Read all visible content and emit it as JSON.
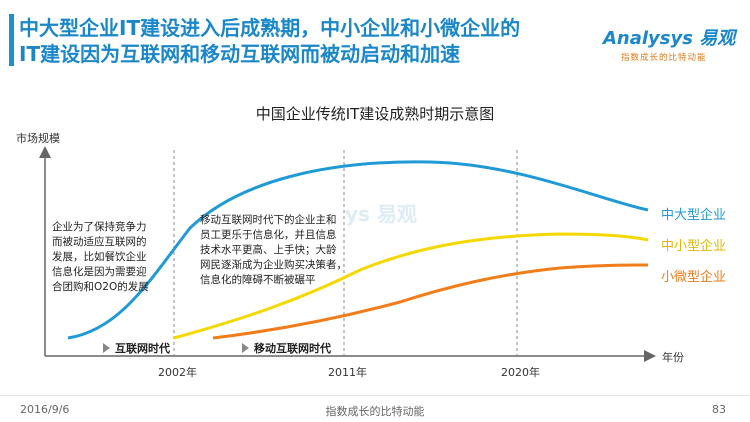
{
  "header": {
    "title_line1": "中大型企业IT建设进入后成熟期，中小企业和小微企业的",
    "title_line2": "IT建设因为互联网和移动互联网而被动启动和加速"
  },
  "logo": {
    "brand": "Analysys 易观",
    "tagline": "指数成长的比特动能"
  },
  "chart_data": {
    "type": "line",
    "title": "中国企业传统IT建设成熟时期示意图",
    "ylabel": "市场规模",
    "xlabel": "年份",
    "x_ticks": [
      "2002年",
      "2011年",
      "2020年"
    ],
    "series": [
      {
        "name": "中大型企业",
        "color": "#1f9ad6"
      },
      {
        "name": "中小型企业",
        "color": "#f5d800"
      },
      {
        "name": "小微型企业",
        "color": "#f07c1a"
      }
    ],
    "grid": false
  },
  "notes": {
    "left": [
      "企业为了保持竞争力",
      "而被动适应互联网的",
      "发展，比如餐饮企业",
      "信息化是因为需要迎",
      "合团购和O2O的发展"
    ],
    "middle": [
      "移动互联网时代下的企业主和",
      "员工更乐于信息化，并且信息",
      "技术水平更高、上手快；大龄",
      "网民逐渐成为企业购买决策者，",
      "信息化的障碍不断被碾平"
    ]
  },
  "eras": {
    "internet": "互联网时代",
    "mobile": "移动互联网时代"
  },
  "footer": {
    "date": "2016/9/6",
    "center": "指数成长的比特动能",
    "page": "83"
  },
  "colors": {
    "accent": "#1a87c9",
    "axis": "#666666",
    "dashed": "#888888"
  }
}
